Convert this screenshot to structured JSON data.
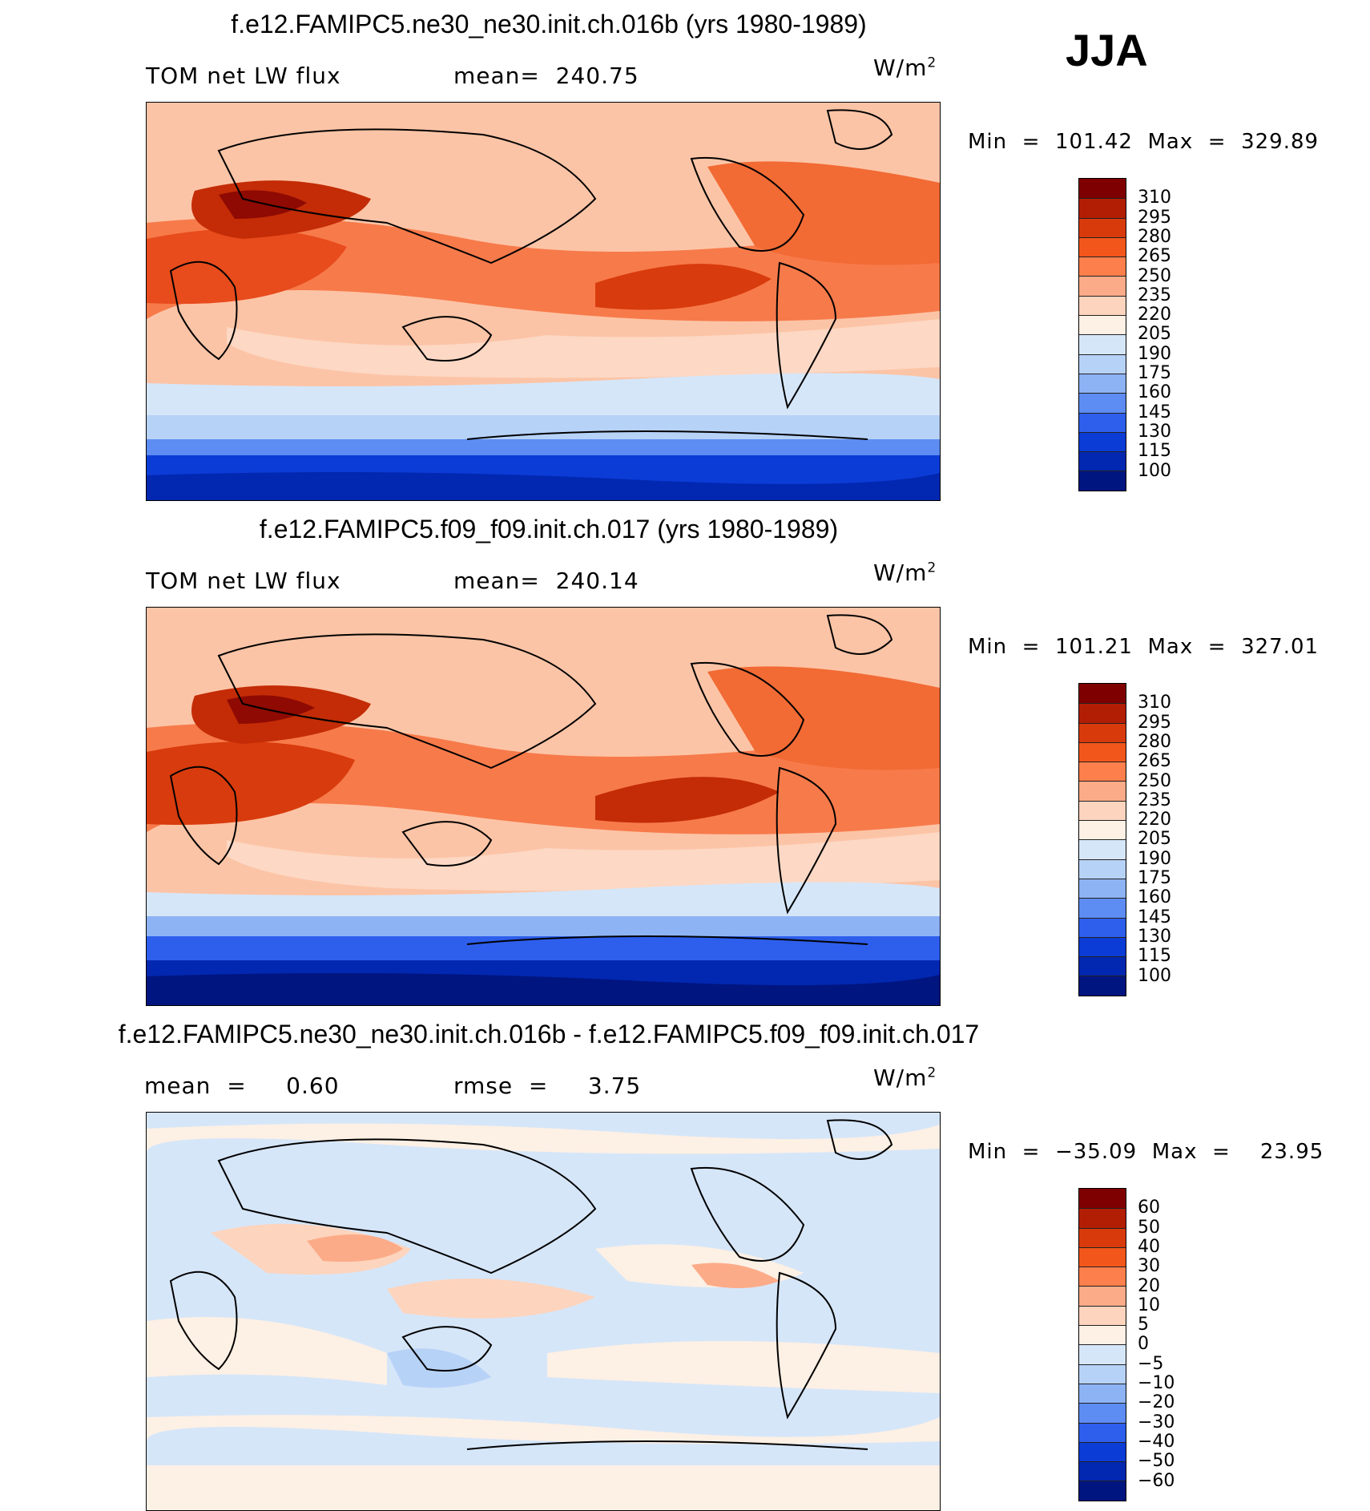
{
  "season": "JJA",
  "panels": [
    {
      "title": "f.e12.FAMIPC5.ne30_ne30.init.ch.016b (yrs 1980-1989)",
      "left_label": "TOM net LW flux",
      "center_label": "mean=  240.75",
      "units": "W/m",
      "units_exp": "2",
      "minmax": "Min  =  101.42  Max  =  329.89",
      "colorbar": {
        "colors": [
          "#7f0000",
          "#b21e04",
          "#d93a0c",
          "#f2561a",
          "#fc7f4c",
          "#fcab88",
          "#fdd4bd",
          "#fdf0e4",
          "#d6e6f9",
          "#b7d2f7",
          "#8db3f5",
          "#5d8cf2",
          "#2e5eec",
          "#0b3cd6",
          "#0227b0",
          "#00157f"
        ],
        "ticks": [
          "310",
          "295",
          "280",
          "265",
          "250",
          "235",
          "220",
          "205",
          "190",
          "175",
          "160",
          "145",
          "130",
          "115",
          "100"
        ]
      }
    },
    {
      "title": "f.e12.FAMIPC5.f09_f09.init.ch.017 (yrs 1980-1989)",
      "left_label": "TOM net LW flux",
      "center_label": "mean=  240.14",
      "units": "W/m",
      "units_exp": "2",
      "minmax": "Min  =  101.21  Max  =  327.01",
      "colorbar": {
        "colors": [
          "#7f0000",
          "#b21e04",
          "#d93a0c",
          "#f2561a",
          "#fc7f4c",
          "#fcab88",
          "#fdd4bd",
          "#fdf0e4",
          "#d6e6f9",
          "#b7d2f7",
          "#8db3f5",
          "#5d8cf2",
          "#2e5eec",
          "#0b3cd6",
          "#0227b0",
          "#00157f"
        ],
        "ticks": [
          "310",
          "295",
          "280",
          "265",
          "250",
          "235",
          "220",
          "205",
          "190",
          "175",
          "160",
          "145",
          "130",
          "115",
          "100"
        ]
      }
    },
    {
      "title": "f.e12.FAMIPC5.ne30_ne30.init.ch.016b - f.e12.FAMIPC5.f09_f09.init.ch.017",
      "left_label": "mean  =     0.60",
      "center_label": "rmse  =     3.75",
      "units": "W/m",
      "units_exp": "2",
      "minmax": "Min  =  −35.09  Max  =    23.95",
      "colorbar": {
        "colors": [
          "#7f0000",
          "#b21e04",
          "#d93a0c",
          "#f2561a",
          "#fc7f4c",
          "#fcab88",
          "#fdd4bd",
          "#fdf0e4",
          "#d6e6f9",
          "#b7d2f7",
          "#8db3f5",
          "#5d8cf2",
          "#2e5eec",
          "#0b3cd6",
          "#0227b0",
          "#00157f"
        ],
        "ticks": [
          "60",
          "50",
          "40",
          "30",
          "20",
          "10",
          "5",
          "0",
          "−5",
          "−10",
          "−20",
          "−30",
          "−40",
          "−50",
          "−60"
        ]
      }
    }
  ]
}
